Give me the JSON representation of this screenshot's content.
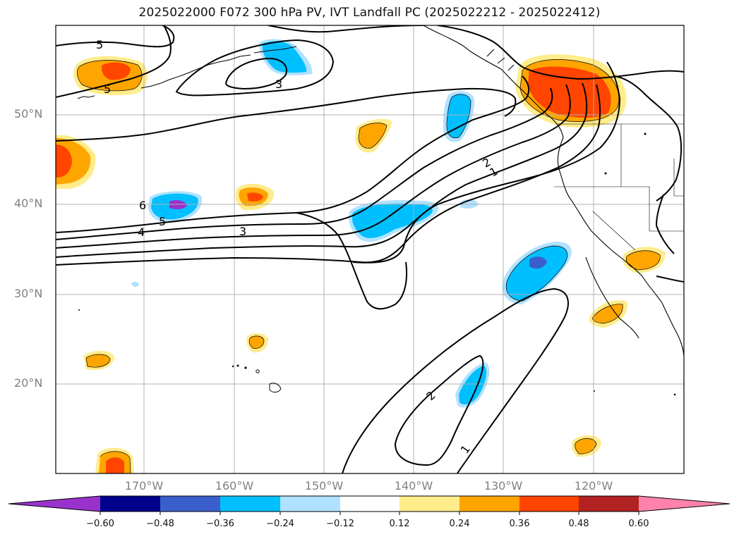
{
  "title": "2025022000 F072 300 hPa PV, IVT Landfall PC (2025022212 - 2025022412)",
  "map": {
    "region": "North Pacific / Western North America",
    "gridlines": true,
    "lat_labels": [
      "50°N",
      "40°N",
      "30°N",
      "20°N"
    ],
    "lon_labels": [
      "170°W",
      "160°W",
      "150°W",
      "140°W",
      "130°W",
      "120°W"
    ],
    "contour_labels": [
      {
        "id": "label-5-nw",
        "text": "5"
      },
      {
        "id": "label-5-nw2",
        "text": "5"
      },
      {
        "id": "label-3-north",
        "text": "3"
      },
      {
        "id": "label-6-west",
        "text": "6"
      },
      {
        "id": "label-5-west",
        "text": "5"
      },
      {
        "id": "label-4-west",
        "text": "4"
      },
      {
        "id": "label-3-mid",
        "text": "3"
      },
      {
        "id": "label-2-ne",
        "text": "2"
      },
      {
        "id": "label-1-ne",
        "text": "1"
      },
      {
        "id": "label-2-south",
        "text": "2"
      },
      {
        "id": "label-1-south",
        "text": "1"
      }
    ]
  },
  "colorbar": {
    "colors": [
      "#9932cc",
      "#00008b",
      "#3a5fcd",
      "#00bfff",
      "#b0e2ff",
      "#ffffff",
      "#ffec8b",
      "#ffa500",
      "#ff4500",
      "#b22222",
      "#ff82ab"
    ],
    "ticks": [
      "−0.60",
      "−0.48",
      "−0.36",
      "−0.24",
      "−0.12",
      "0.12",
      "0.24",
      "0.36",
      "0.48",
      "0.60"
    ]
  },
  "colors": {
    "pos_light": "#ffec8b",
    "pos_mid": "#ffa500",
    "pos_strong": "#ff4500",
    "neg_light": "#b0e2ff",
    "neg_mid": "#00bfff",
    "neg_strong": "#3a5fcd",
    "neg_purple": "#9932cc"
  }
}
